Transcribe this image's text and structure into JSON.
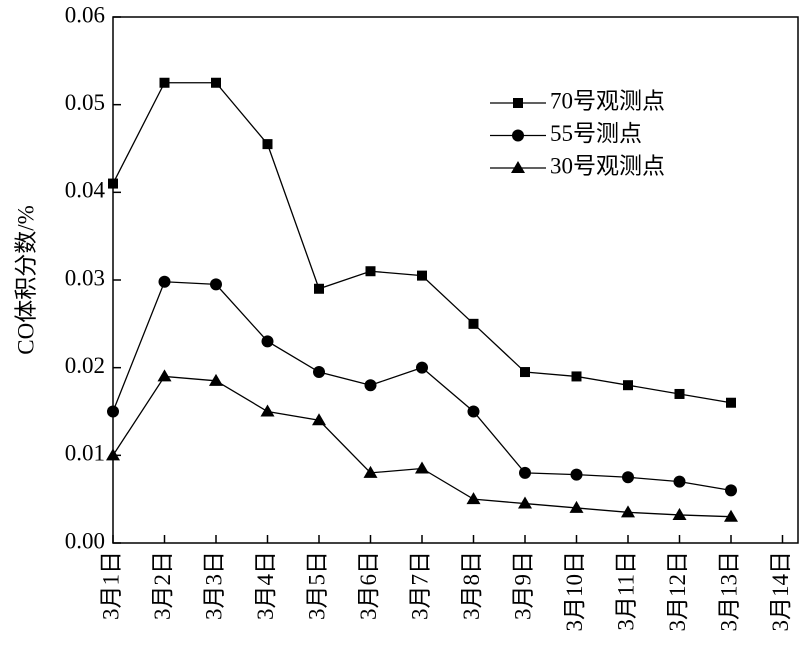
{
  "chart_data": {
    "type": "line",
    "y_label": "CO体积分数/%",
    "categories": [
      "3月1日",
      "3月2日",
      "3月3日",
      "3月4日",
      "3月5日",
      "3月6日",
      "3月7日",
      "3月8日",
      "3月9日",
      "3月10日",
      "3月11日",
      "3月12日",
      "3月13日",
      "3月14日"
    ],
    "series": [
      {
        "name": "70号观测点",
        "color": "#000000",
        "marker": "square",
        "values": [
          0.041,
          0.0525,
          0.0525,
          0.0455,
          0.029,
          0.031,
          0.0305,
          0.025,
          0.0195,
          0.019,
          0.018,
          0.017,
          0.016,
          null
        ]
      },
      {
        "name": "55号测点",
        "color": "#000000",
        "marker": "circle",
        "values": [
          0.015,
          0.0298,
          0.0295,
          0.023,
          0.0195,
          0.018,
          0.02,
          0.015,
          0.008,
          0.0078,
          0.0075,
          0.007,
          0.006,
          null
        ]
      },
      {
        "name": "30号观测点",
        "color": "#000000",
        "marker": "triangle",
        "values": [
          0.01,
          0.019,
          0.0185,
          0.015,
          0.014,
          0.008,
          0.0085,
          0.005,
          0.0045,
          0.004,
          0.0035,
          0.0032,
          0.003,
          null
        ]
      }
    ],
    "ylim": [
      0,
      0.06
    ],
    "yticks": [
      {
        "value": 0,
        "label": "0.00"
      },
      0.01,
      0.02,
      0.03,
      0.04,
      0.05,
      0.06
    ],
    "legend": "upper right",
    "grid": false
  }
}
